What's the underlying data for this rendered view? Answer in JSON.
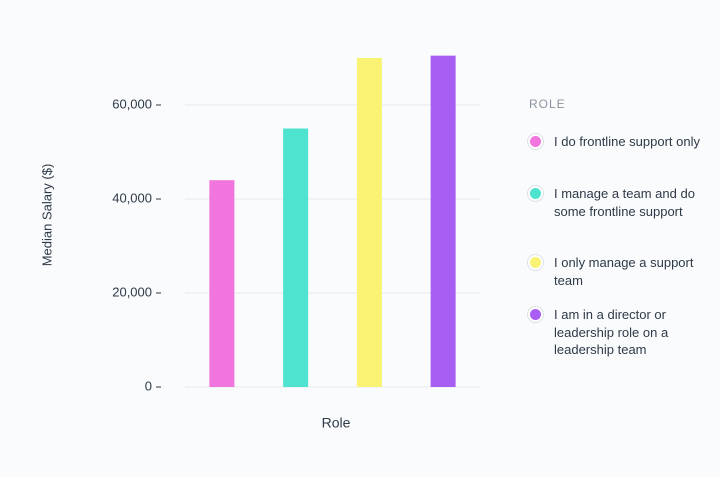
{
  "chart_data": {
    "type": "bar",
    "y_label": "Median Salary ($)",
    "x_label": "Role",
    "legend_title": "ROLE",
    "categories": [
      "I do frontline support only",
      "I manage a team and do some frontline support",
      "I only manage a support team",
      "I am in a director or leadership role on a leadership team"
    ],
    "values": [
      44000,
      55000,
      70000,
      70500
    ],
    "colors": [
      "#f075dc",
      "#4de3cf",
      "#f9f272",
      "#a95ef3"
    ],
    "ylim": [
      0,
      72000
    ],
    "yticks": [
      {
        "value": 0,
        "label": "0"
      },
      {
        "value": 20000,
        "label": "20,000"
      },
      {
        "value": 40000,
        "label": "40,000"
      },
      {
        "value": 60000,
        "label": "60,000"
      }
    ],
    "grid": true
  }
}
